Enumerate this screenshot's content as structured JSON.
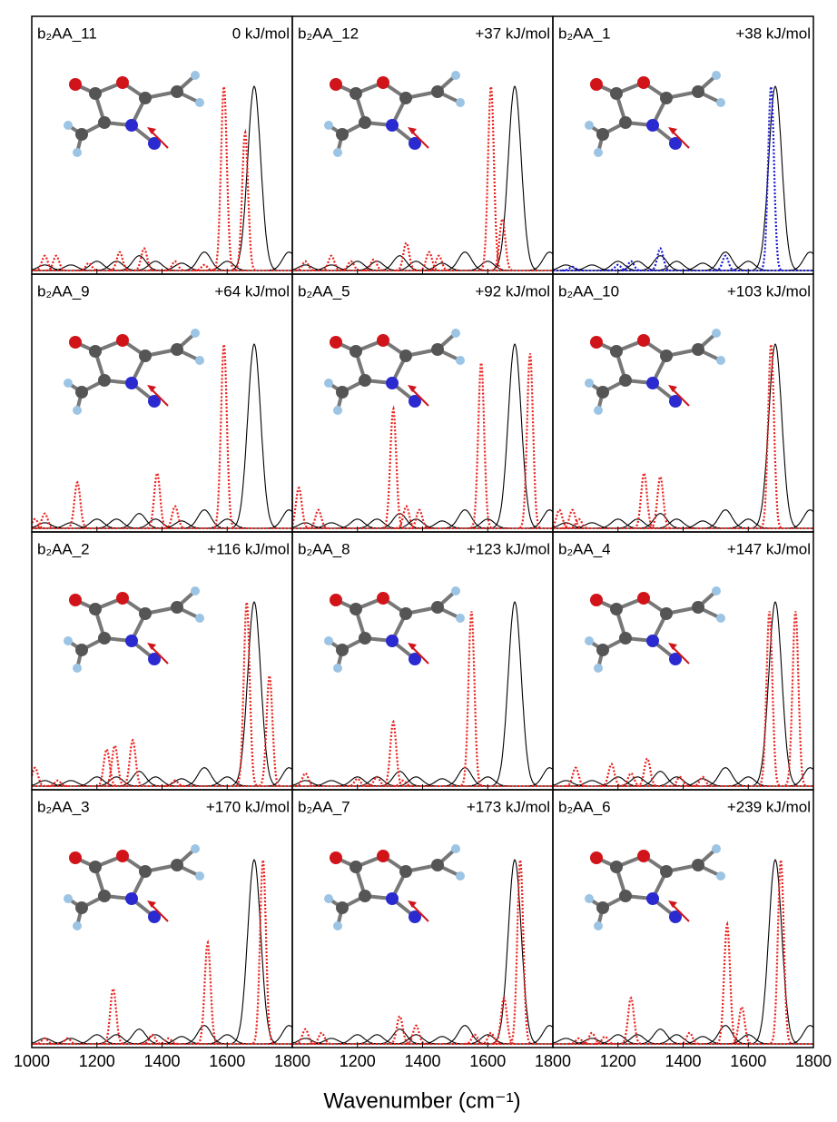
{
  "xlabel": "Wavenumber (cm⁻¹)",
  "chart_data": [
    {
      "type": "spectrum",
      "title": "b₂AA_11",
      "energy": "0 kJ/mol",
      "xlim": [
        1000,
        1800
      ],
      "ylim": [
        -0.02,
        1.38
      ],
      "xticks": [
        1000,
        1200,
        1400,
        1600,
        1800
      ],
      "xtick_labels": false,
      "series": [
        {
          "color": "#000000",
          "x": [
            1040,
            1120,
            1200,
            1260,
            1330,
            1380,
            1460,
            1530,
            1600,
            1683,
            1790
          ],
          "values": [
            0.03,
            0.03,
            0.05,
            0.05,
            0.08,
            0.05,
            0.04,
            0.1,
            0.05,
            1.0,
            0.1
          ]
        },
        {
          "color": "#e8201c",
          "x": [
            1040,
            1075,
            1175,
            1270,
            1345,
            1440,
            1530,
            1590,
            1655
          ],
          "values": [
            0.08,
            0.08,
            0.04,
            0.1,
            0.12,
            0.05,
            0.03,
            1.0,
            0.75
          ]
        }
      ]
    },
    {
      "type": "spectrum",
      "title": "b₂AA_12",
      "energy": "+37 kJ/mol",
      "xlim": [
        1000,
        1800
      ],
      "ylim": [
        -0.02,
        1.38
      ],
      "xticks": [
        1000,
        1200,
        1400,
        1600,
        1800
      ],
      "xtick_labels": false,
      "series": [
        {
          "color": "#000000",
          "x": [
            1040,
            1120,
            1200,
            1260,
            1330,
            1380,
            1460,
            1530,
            1600,
            1683,
            1790
          ],
          "values": [
            0.03,
            0.03,
            0.05,
            0.05,
            0.08,
            0.05,
            0.04,
            0.1,
            0.05,
            1.0,
            0.1
          ]
        },
        {
          "color": "#e8201c",
          "x": [
            1040,
            1120,
            1180,
            1250,
            1350,
            1420,
            1450,
            1610,
            1645
          ],
          "values": [
            0.05,
            0.08,
            0.05,
            0.06,
            0.15,
            0.1,
            0.08,
            1.0,
            0.28
          ]
        }
      ]
    },
    {
      "type": "spectrum",
      "title": "b₂AA_1",
      "energy": "+38 kJ/mol",
      "xlim": [
        1000,
        1800
      ],
      "ylim": [
        -0.02,
        1.38
      ],
      "xticks": [
        1000,
        1200,
        1400,
        1600,
        1800
      ],
      "xtick_labels": false,
      "series": [
        {
          "color": "#000000",
          "x": [
            1040,
            1120,
            1200,
            1260,
            1330,
            1380,
            1460,
            1530,
            1600,
            1683,
            1790
          ],
          "values": [
            0.03,
            0.03,
            0.05,
            0.05,
            0.08,
            0.05,
            0.04,
            0.1,
            0.05,
            1.0,
            0.1
          ]
        },
        {
          "color": "#1b1bd6",
          "x": [
            1060,
            1200,
            1240,
            1330,
            1530,
            1670
          ],
          "values": [
            0.02,
            0.03,
            0.05,
            0.12,
            0.08,
            1.0
          ]
        }
      ]
    },
    {
      "type": "spectrum",
      "title": "b₂AA_9",
      "energy": "+64 kJ/mol",
      "xlim": [
        1000,
        1800
      ],
      "ylim": [
        -0.02,
        1.38
      ],
      "xticks": [
        1000,
        1200,
        1400,
        1600,
        1800
      ],
      "xtick_labels": false,
      "series": [
        {
          "color": "#000000",
          "x": [
            1040,
            1120,
            1200,
            1260,
            1330,
            1380,
            1460,
            1530,
            1600,
            1683,
            1790
          ],
          "values": [
            0.03,
            0.03,
            0.05,
            0.05,
            0.08,
            0.05,
            0.04,
            0.1,
            0.05,
            1.0,
            0.1
          ]
        },
        {
          "color": "#e8201c",
          "x": [
            1010,
            1040,
            1140,
            1385,
            1440,
            1590
          ],
          "values": [
            0.05,
            0.08,
            0.25,
            0.3,
            0.12,
            1.0
          ]
        }
      ]
    },
    {
      "type": "spectrum",
      "title": "b₂AA_5",
      "energy": "+92 kJ/mol",
      "xlim": [
        1000,
        1800
      ],
      "ylim": [
        -0.02,
        1.38
      ],
      "xticks": [
        1000,
        1200,
        1400,
        1600,
        1800
      ],
      "xtick_labels": false,
      "series": [
        {
          "color": "#000000",
          "x": [
            1040,
            1120,
            1200,
            1260,
            1330,
            1380,
            1460,
            1530,
            1600,
            1683,
            1790
          ],
          "values": [
            0.03,
            0.03,
            0.05,
            0.05,
            0.08,
            0.05,
            0.04,
            0.1,
            0.05,
            1.0,
            0.1
          ]
        },
        {
          "color": "#e8201c",
          "x": [
            1020,
            1080,
            1310,
            1350,
            1390,
            1580,
            1730
          ],
          "values": [
            0.22,
            0.1,
            0.65,
            0.12,
            0.1,
            0.9,
            0.95
          ]
        }
      ]
    },
    {
      "type": "spectrum",
      "title": "b₂AA_10",
      "energy": "+103 kJ/mol",
      "xlim": [
        1000,
        1800
      ],
      "ylim": [
        -0.02,
        1.38
      ],
      "xticks": [
        1000,
        1200,
        1400,
        1600,
        1800
      ],
      "xtick_labels": false,
      "series": [
        {
          "color": "#000000",
          "x": [
            1040,
            1120,
            1200,
            1260,
            1330,
            1380,
            1460,
            1530,
            1600,
            1683,
            1790
          ],
          "values": [
            0.03,
            0.03,
            0.05,
            0.05,
            0.08,
            0.05,
            0.04,
            0.1,
            0.05,
            1.0,
            0.1
          ]
        },
        {
          "color": "#e8201c",
          "x": [
            1020,
            1060,
            1080,
            1280,
            1330,
            1670
          ],
          "values": [
            0.1,
            0.1,
            0.05,
            0.3,
            0.28,
            1.0
          ]
        }
      ]
    },
    {
      "type": "spectrum",
      "title": "b₂AA_2",
      "energy": "+116 kJ/mol",
      "xlim": [
        1000,
        1800
      ],
      "ylim": [
        -0.02,
        1.38
      ],
      "xticks": [
        1000,
        1200,
        1400,
        1600,
        1800
      ],
      "xtick_labels": false,
      "series": [
        {
          "color": "#000000",
          "x": [
            1040,
            1120,
            1200,
            1260,
            1330,
            1380,
            1460,
            1530,
            1600,
            1683,
            1790
          ],
          "values": [
            0.03,
            0.03,
            0.05,
            0.05,
            0.08,
            0.05,
            0.04,
            0.1,
            0.05,
            1.0,
            0.1
          ]
        },
        {
          "color": "#e8201c",
          "x": [
            1010,
            1080,
            1230,
            1255,
            1310,
            1440,
            1660,
            1730
          ],
          "values": [
            0.1,
            0.03,
            0.2,
            0.22,
            0.25,
            0.03,
            1.0,
            0.6
          ]
        }
      ]
    },
    {
      "type": "spectrum",
      "title": "b₂AA_8",
      "energy": "+123 kJ/mol",
      "xlim": [
        1000,
        1800
      ],
      "ylim": [
        -0.02,
        1.38
      ],
      "xticks": [
        1000,
        1200,
        1400,
        1600,
        1800
      ],
      "xtick_labels": false,
      "series": [
        {
          "color": "#000000",
          "x": [
            1040,
            1120,
            1200,
            1260,
            1330,
            1380,
            1460,
            1530,
            1600,
            1683,
            1790
          ],
          "values": [
            0.03,
            0.03,
            0.05,
            0.05,
            0.08,
            0.05,
            0.04,
            0.1,
            0.05,
            1.0,
            0.1
          ]
        },
        {
          "color": "#e8201c",
          "x": [
            1040,
            1200,
            1260,
            1310,
            1340,
            1550
          ],
          "values": [
            0.07,
            0.04,
            0.05,
            0.35,
            0.03,
            0.95
          ]
        }
      ]
    },
    {
      "type": "spectrum",
      "title": "b₂AA_4",
      "energy": "+147 kJ/mol",
      "xlim": [
        1000,
        1800
      ],
      "ylim": [
        -0.02,
        1.38
      ],
      "xticks": [
        1000,
        1200,
        1400,
        1600,
        1800
      ],
      "xtick_labels": false,
      "series": [
        {
          "color": "#000000",
          "x": [
            1040,
            1120,
            1200,
            1260,
            1330,
            1380,
            1460,
            1530,
            1600,
            1683,
            1790
          ],
          "values": [
            0.03,
            0.03,
            0.05,
            0.05,
            0.08,
            0.05,
            0.04,
            0.1,
            0.05,
            1.0,
            0.1
          ]
        },
        {
          "color": "#e8201c",
          "x": [
            1070,
            1180,
            1240,
            1290,
            1390,
            1460,
            1665,
            1745
          ],
          "values": [
            0.1,
            0.12,
            0.07,
            0.15,
            0.05,
            0.05,
            0.95,
            0.95
          ]
        }
      ]
    },
    {
      "type": "spectrum",
      "title": "b₂AA_3",
      "energy": "+170 kJ/mol",
      "xlim": [
        1000,
        1800
      ],
      "ylim": [
        -0.02,
        1.38
      ],
      "xticks": [
        1000,
        1200,
        1400,
        1600,
        1800
      ],
      "xtick_labels": true,
      "series": [
        {
          "color": "#000000",
          "x": [
            1040,
            1120,
            1200,
            1260,
            1330,
            1380,
            1460,
            1530,
            1600,
            1683,
            1790
          ],
          "values": [
            0.03,
            0.03,
            0.05,
            0.05,
            0.08,
            0.05,
            0.04,
            0.1,
            0.05,
            1.0,
            0.1
          ]
        },
        {
          "color": "#e8201c",
          "x": [
            1040,
            1110,
            1250,
            1370,
            1420,
            1540,
            1710
          ],
          "values": [
            0.03,
            0.03,
            0.3,
            0.05,
            0.03,
            0.55,
            1.0
          ]
        }
      ]
    },
    {
      "type": "spectrum",
      "title": "b₂AA_7",
      "energy": "+173 kJ/mol",
      "xlim": [
        1000,
        1800
      ],
      "ylim": [
        -0.02,
        1.38
      ],
      "xticks": [
        1200,
        1400,
        1600,
        1800
      ],
      "xtick_labels": true,
      "series": [
        {
          "color": "#000000",
          "x": [
            1040,
            1120,
            1200,
            1260,
            1330,
            1380,
            1460,
            1530,
            1600,
            1683,
            1790
          ],
          "values": [
            0.03,
            0.03,
            0.05,
            0.05,
            0.08,
            0.05,
            0.04,
            0.1,
            0.05,
            1.0,
            0.1
          ]
        },
        {
          "color": "#e8201c",
          "x": [
            1040,
            1090,
            1330,
            1380,
            1560,
            1610,
            1650,
            1700
          ],
          "values": [
            0.08,
            0.06,
            0.15,
            0.1,
            0.05,
            0.06,
            0.25,
            1.0
          ]
        }
      ]
    },
    {
      "type": "spectrum",
      "title": "b₂AA_6",
      "energy": "+239 kJ/mol",
      "xlim": [
        1000,
        1800
      ],
      "ylim": [
        -0.02,
        1.38
      ],
      "xticks": [
        1200,
        1400,
        1600,
        1800
      ],
      "xtick_labels": true,
      "series": [
        {
          "color": "#000000",
          "x": [
            1040,
            1120,
            1200,
            1260,
            1330,
            1380,
            1460,
            1530,
            1600,
            1683,
            1790
          ],
          "values": [
            0.03,
            0.03,
            0.05,
            0.05,
            0.08,
            0.05,
            0.04,
            0.1,
            0.05,
            1.0,
            0.1
          ]
        },
        {
          "color": "#e8201c",
          "x": [
            1080,
            1120,
            1160,
            1240,
            1420,
            1535,
            1580,
            1700
          ],
          "values": [
            0.03,
            0.06,
            0.04,
            0.25,
            0.06,
            0.65,
            0.2,
            1.0
          ]
        }
      ]
    }
  ]
}
